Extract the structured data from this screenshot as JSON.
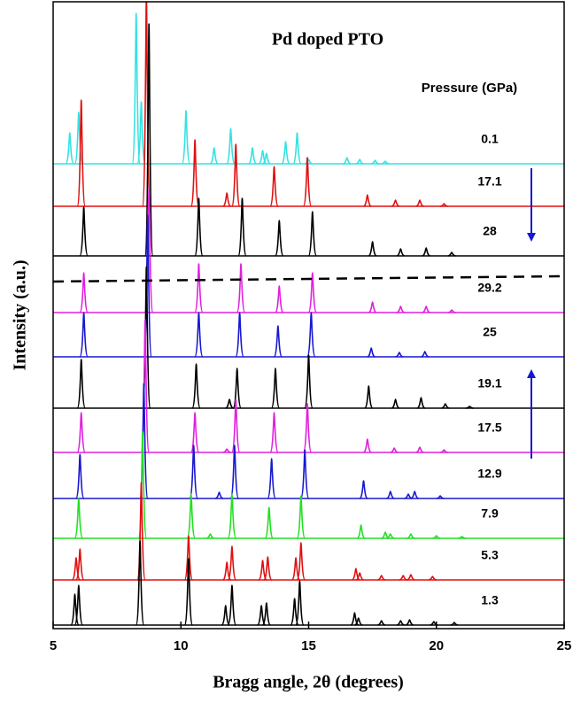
{
  "chart_data": {
    "type": "stacked-pattern",
    "title": "Pd doped PTO",
    "legend_title": "Pressure (GPa)",
    "x_label": "Bragg angle, 2θ (degrees)",
    "y_label": "Intensity (a.u.)",
    "xlim": [
      5,
      25
    ],
    "xticks": [
      5,
      10,
      15,
      20,
      25
    ],
    "series": [
      {
        "name": "0.1",
        "color": "#33e3e3",
        "x": [
          5.65,
          6.0,
          8.25,
          8.45,
          10.2,
          11.3,
          11.95,
          12.8,
          13.2,
          13.35,
          14.1,
          14.55,
          15.0,
          16.5,
          17.0,
          17.6,
          18.0
        ],
        "values": [
          35,
          58,
          170,
          70,
          60,
          18,
          40,
          18,
          15,
          12,
          25,
          35,
          5,
          7,
          5,
          4,
          3
        ]
      },
      {
        "name": "17.1",
        "color": "#e01010",
        "x": [
          6.1,
          8.65,
          10.55,
          11.8,
          12.15,
          13.65,
          14.95,
          17.3,
          18.4,
          19.35,
          20.3
        ],
        "values": [
          120,
          240,
          75,
          15,
          70,
          45,
          55,
          13,
          7,
          7,
          3
        ]
      },
      {
        "name": "28",
        "color": "#000000",
        "x": [
          6.2,
          8.75,
          10.7,
          12.4,
          13.85,
          15.15,
          17.5,
          18.6,
          19.6,
          20.6
        ],
        "values": [
          55,
          262,
          65,
          65,
          40,
          50,
          16,
          8,
          9,
          4
        ]
      },
      {
        "name": "29.2",
        "color": "#e020e0",
        "x": [
          6.2,
          8.75,
          10.7,
          12.35,
          13.85,
          15.15,
          17.5,
          18.6,
          19.6,
          20.6
        ],
        "values": [
          45,
          140,
          55,
          55,
          30,
          45,
          12,
          7,
          7,
          3
        ]
      },
      {
        "name": "25",
        "color": "#1818d0",
        "x": [
          6.2,
          8.7,
          10.7,
          12.3,
          13.8,
          15.1,
          17.45,
          18.55,
          19.55
        ],
        "values": [
          50,
          160,
          50,
          50,
          35,
          50,
          10,
          5,
          6
        ]
      },
      {
        "name": "19.1",
        "color": "#000000",
        "x": [
          6.1,
          8.65,
          10.6,
          11.9,
          12.2,
          13.7,
          15.0,
          17.35,
          18.4,
          19.4,
          20.35,
          21.3
        ],
        "values": [
          55,
          160,
          50,
          10,
          45,
          45,
          60,
          25,
          10,
          12,
          5,
          2
        ]
      },
      {
        "name": "17.5",
        "color": "#e020e0",
        "x": [
          6.1,
          8.6,
          10.55,
          11.8,
          12.15,
          13.65,
          14.95,
          17.3,
          18.35,
          19.35,
          20.3
        ],
        "values": [
          45,
          150,
          45,
          4,
          60,
          45,
          55,
          15,
          5,
          6,
          3
        ]
      },
      {
        "name": "12.9",
        "color": "#1818d0",
        "x": [
          6.05,
          8.55,
          10.5,
          11.5,
          12.1,
          13.55,
          14.85,
          17.15,
          18.2,
          18.9,
          19.15,
          20.15
        ],
        "values": [
          50,
          130,
          60,
          7,
          60,
          45,
          55,
          20,
          8,
          5,
          8,
          3
        ]
      },
      {
        "name": "7.9",
        "color": "#22e022",
        "x": [
          6.0,
          8.5,
          10.4,
          11.15,
          12.0,
          13.45,
          14.7,
          17.05,
          18.0,
          18.2,
          19.0,
          20.0,
          21.0
        ],
        "values": [
          45,
          120,
          50,
          5,
          50,
          35,
          48,
          15,
          7,
          5,
          5,
          3,
          2
        ]
      },
      {
        "name": "5.3",
        "color": "#e01010",
        "x": [
          5.9,
          6.05,
          8.45,
          10.3,
          11.8,
          12.0,
          13.2,
          13.4,
          14.5,
          14.7,
          16.85,
          17.0,
          17.85,
          18.7,
          19.0,
          19.85
        ],
        "values": [
          25,
          35,
          110,
          50,
          20,
          38,
          22,
          26,
          25,
          42,
          13,
          8,
          5,
          5,
          6,
          4
        ]
      },
      {
        "name": "1.3",
        "color": "#000000",
        "x": [
          5.85,
          6.0,
          8.4,
          10.3,
          11.75,
          12.0,
          13.15,
          13.35,
          14.45,
          14.65,
          16.8,
          16.95,
          17.85,
          18.6,
          18.95,
          19.9,
          20.7
        ],
        "values": [
          35,
          45,
          95,
          75,
          22,
          45,
          22,
          25,
          30,
          50,
          14,
          8,
          5,
          5,
          6,
          4,
          3
        ]
      }
    ]
  }
}
